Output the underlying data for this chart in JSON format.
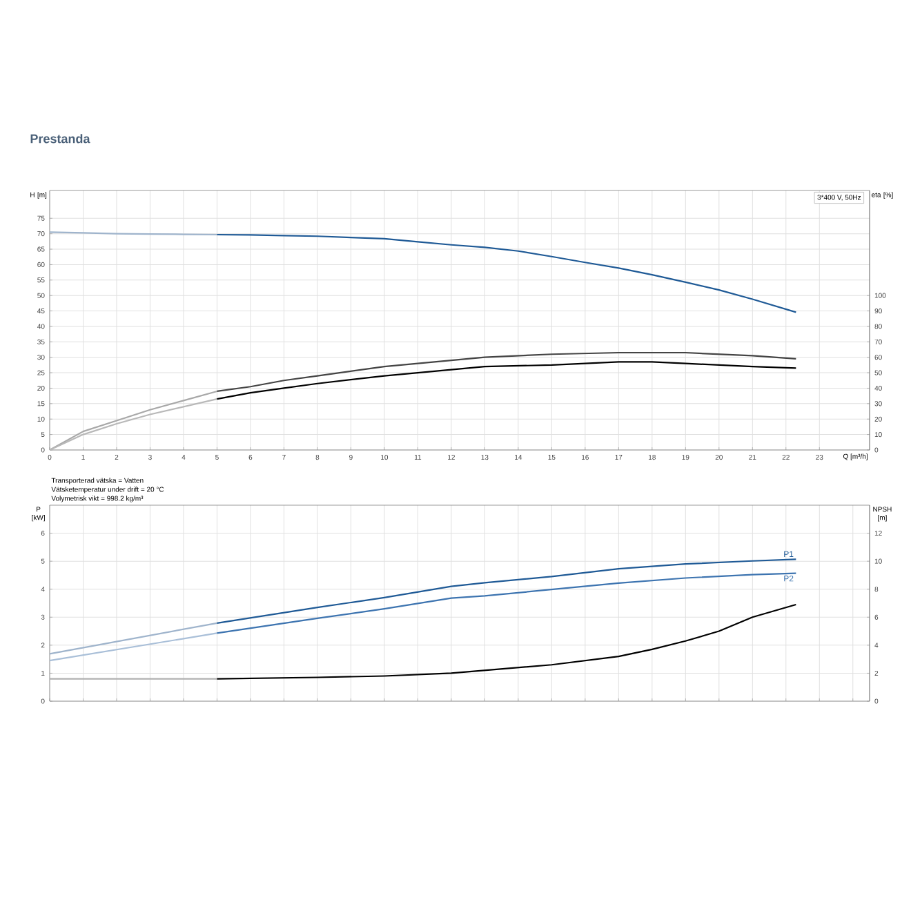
{
  "chart_data": [
    {
      "type": "line",
      "title": "Prestanda",
      "xlabel": "Q [m³/h]",
      "ylabel": "H [m]",
      "y2label": "eta [%]",
      "annotations": [
        "3*400 V, 50Hz"
      ],
      "xlim": [
        0,
        24.5
      ],
      "xticks": [
        0,
        1,
        2,
        3,
        4,
        5,
        6,
        7,
        8,
        9,
        10,
        11,
        12,
        13,
        14,
        15,
        16,
        17,
        18,
        19,
        20,
        21,
        22,
        23
      ],
      "ylim": [
        0,
        84
      ],
      "yticks": [
        0,
        5,
        10,
        15,
        20,
        25,
        30,
        35,
        40,
        45,
        50,
        55,
        60,
        65,
        70,
        75
      ],
      "y2lim": [
        0,
        168
      ],
      "y2ticks": [
        0,
        10,
        20,
        30,
        40,
        50,
        60,
        70,
        80,
        90,
        100
      ],
      "grid": true,
      "series": [
        {
          "color": "#9fb4cc",
          "x": [
            0,
            1,
            2,
            3,
            4,
            5
          ],
          "values": [
            70.5,
            70.3,
            70.0,
            69.9,
            69.8,
            69.7
          ]
        },
        {
          "color": "#1f5a96",
          "x": [
            5,
            6,
            7,
            8,
            9,
            10,
            11,
            12,
            13,
            14,
            15,
            16,
            17,
            18,
            19,
            20,
            21,
            22.3
          ],
          "values": [
            69.7,
            69.6,
            69.4,
            69.2,
            68.8,
            68.4,
            67.4,
            66.4,
            65.6,
            64.4,
            62.6,
            60.7,
            58.9,
            56.7,
            54.3,
            51.8,
            48.8,
            44.6
          ]
        },
        {
          "color": "#a8a8a8",
          "axis": "y2",
          "x": [
            0,
            1,
            2,
            3,
            4,
            5
          ],
          "values": [
            0,
            12,
            19,
            26,
            32,
            38
          ]
        },
        {
          "color": "#444444",
          "axis": "y2",
          "x": [
            5,
            6,
            7,
            8,
            10,
            12,
            13,
            15,
            17,
            19,
            21,
            22.3
          ],
          "values": [
            38,
            41,
            45,
            48,
            54,
            58,
            60,
            62,
            63,
            63,
            61,
            59
          ]
        },
        {
          "color": "#b8b8b8",
          "axis": "y2",
          "x": [
            0,
            1,
            2,
            3,
            4,
            5
          ],
          "values": [
            0,
            10,
            17,
            23,
            28,
            33
          ]
        },
        {
          "color": "#000000",
          "axis": "y2",
          "x": [
            5,
            6,
            7,
            8,
            10,
            12,
            13,
            15,
            17,
            18,
            19,
            21,
            22.3
          ],
          "values": [
            33,
            37,
            40,
            43,
            48,
            52,
            54,
            55,
            57,
            57,
            56,
            54,
            53
          ]
        }
      ]
    },
    {
      "type": "line",
      "ylabel": "P [kW]",
      "y2label": "NPSH [m]",
      "annotations": [
        "Transporterad vätska = Vatten",
        "Vätsketemperatur under drift = 20 °C",
        "Volymetrisk vikt = 998.2 kg/m³"
      ],
      "xlim": [
        0,
        24.5
      ],
      "xticks": [
        0,
        1,
        2,
        3,
        4,
        5,
        6,
        7,
        8,
        9,
        10,
        11,
        12,
        13,
        14,
        15,
        16,
        17,
        18,
        19,
        20,
        21,
        22,
        23,
        24
      ],
      "ylim": [
        0,
        7
      ],
      "yticks": [
        0,
        1,
        2,
        3,
        4,
        5,
        6
      ],
      "y2lim": [
        0,
        14
      ],
      "y2ticks": [
        0,
        2,
        4,
        6,
        8,
        10,
        12
      ],
      "tick_labels": "y",
      "grid": true,
      "series": [
        {
          "color": "#9fb4cc",
          "x": [
            0,
            5
          ],
          "values": [
            1.69,
            2.79
          ]
        },
        {
          "name": "P1",
          "color": "#1f5a96",
          "x": [
            5,
            8,
            10,
            12,
            13,
            15,
            17,
            19,
            21,
            22.3
          ],
          "values": [
            2.79,
            3.35,
            3.7,
            4.1,
            4.23,
            4.45,
            4.73,
            4.9,
            5.01,
            5.07
          ]
        },
        {
          "color": "#a9bfd8",
          "x": [
            0,
            5
          ],
          "values": [
            1.45,
            2.43
          ]
        },
        {
          "name": "P2",
          "color": "#3d74b0",
          "x": [
            5,
            8,
            10,
            12,
            13,
            15,
            17,
            19,
            21,
            22.3
          ],
          "values": [
            2.43,
            2.96,
            3.3,
            3.68,
            3.76,
            3.99,
            4.22,
            4.4,
            4.52,
            4.57
          ]
        },
        {
          "color": "#b0b0b0",
          "axis": "y2",
          "x": [
            0,
            5
          ],
          "values": [
            1.6,
            1.6
          ]
        },
        {
          "color": "#000000",
          "axis": "y2",
          "x": [
            5,
            8,
            10,
            12,
            15,
            17,
            18,
            19,
            20,
            21,
            22.3
          ],
          "values": [
            1.6,
            1.7,
            1.8,
            2.0,
            2.6,
            3.2,
            3.7,
            4.3,
            5.0,
            6.0,
            6.9
          ]
        }
      ]
    }
  ]
}
